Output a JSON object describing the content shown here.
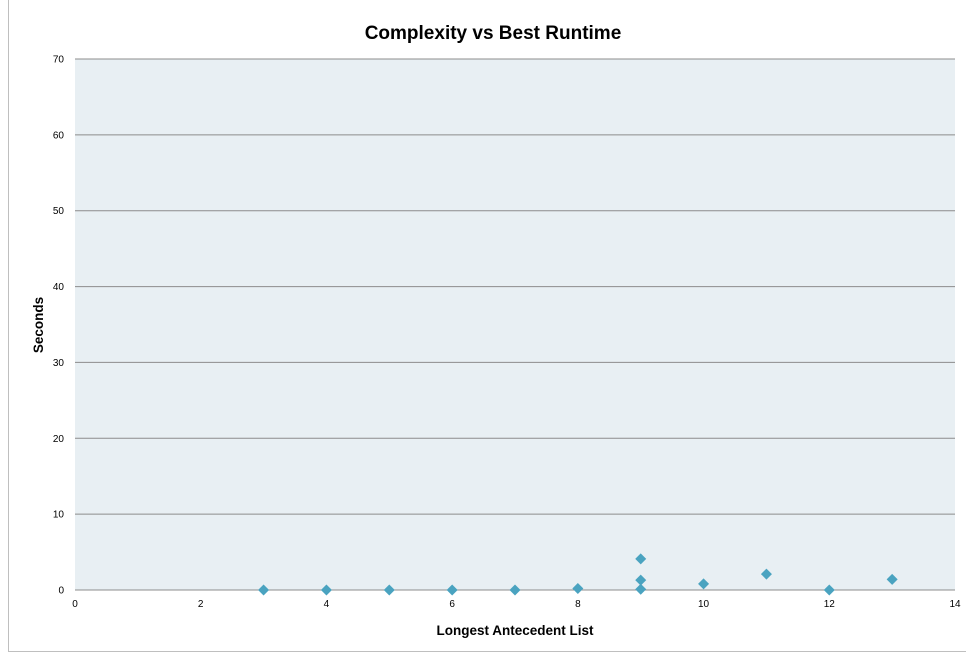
{
  "chart_data": {
    "type": "scatter",
    "title": "Complexity vs Best Runtime",
    "xlabel": "Longest Antecedent List",
    "ylabel": "Seconds",
    "xlim": [
      0,
      14
    ],
    "ylim": [
      0,
      70
    ],
    "x_ticks": [
      "0",
      "2",
      "4",
      "6",
      "8",
      "10",
      "12",
      "14"
    ],
    "y_ticks": [
      "0",
      "10",
      "20",
      "30",
      "40",
      "50",
      "60",
      "70"
    ],
    "grid": "horizontal",
    "legend": "none",
    "marker_color": "#4aa3c0",
    "plot_background": "#e8eff3",
    "points": [
      {
        "x": 3,
        "y": 0
      },
      {
        "x": 4,
        "y": 0
      },
      {
        "x": 5,
        "y": 0
      },
      {
        "x": 6,
        "y": 0
      },
      {
        "x": 7,
        "y": 0
      },
      {
        "x": 8,
        "y": 0.2
      },
      {
        "x": 9,
        "y": 0.1
      },
      {
        "x": 9,
        "y": 1.3
      },
      {
        "x": 9,
        "y": 4.1
      },
      {
        "x": 10,
        "y": 0.8
      },
      {
        "x": 11,
        "y": 2.1
      },
      {
        "x": 12,
        "y": 0
      },
      {
        "x": 13,
        "y": 1.4
      }
    ]
  }
}
